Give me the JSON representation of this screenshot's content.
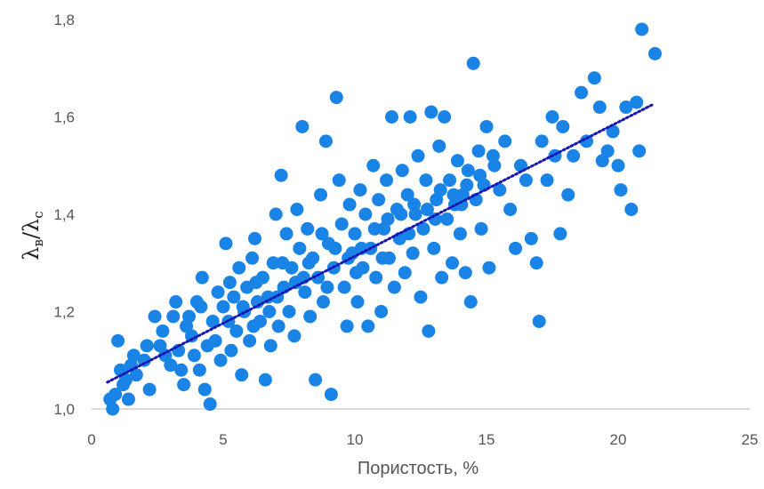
{
  "chart_data": {
    "type": "scatter",
    "title": "",
    "xlabel": "Пористость, %",
    "ylabel": {
      "main1": "λ",
      "sub1": "в",
      "slash": "/",
      "main2": "λ",
      "sub2": "c"
    },
    "xlim": [
      0,
      25
    ],
    "ylim": [
      1.0,
      1.8
    ],
    "xticks": [
      0,
      5,
      10,
      15,
      20,
      25
    ],
    "xtick_labels": [
      "0",
      "5",
      "10",
      "15",
      "20",
      "25"
    ],
    "yticks": [
      1.0,
      1.2,
      1.4,
      1.6,
      1.8
    ],
    "ytick_labels": [
      "1,0",
      "1,2",
      "1,4",
      "1,6",
      "1,8"
    ],
    "grid": false,
    "legend": "none",
    "point_color": "#1a84e6",
    "trendline": {
      "style": "dotted",
      "color": "#1616b4",
      "x": [
        0.6,
        21.3
      ],
      "y": [
        1.055,
        1.625
      ]
    },
    "points": [
      [
        0.7,
        1.02
      ],
      [
        0.8,
        1.0
      ],
      [
        0.9,
        1.03
      ],
      [
        1.0,
        1.14
      ],
      [
        1.1,
        1.08
      ],
      [
        1.2,
        1.05
      ],
      [
        1.3,
        1.06
      ],
      [
        1.4,
        1.02
      ],
      [
        1.6,
        1.11
      ],
      [
        1.7,
        1.07
      ],
      [
        2.0,
        1.1
      ],
      [
        2.2,
        1.04
      ],
      [
        2.4,
        1.19
      ],
      [
        2.6,
        1.13
      ],
      [
        2.8,
        1.11
      ],
      [
        3.0,
        1.09
      ],
      [
        3.1,
        1.19
      ],
      [
        3.2,
        1.22
      ],
      [
        3.3,
        1.12
      ],
      [
        3.4,
        1.08
      ],
      [
        3.5,
        1.05
      ],
      [
        3.6,
        1.17
      ],
      [
        3.8,
        1.15
      ],
      [
        3.9,
        1.11
      ],
      [
        4.0,
        1.22
      ],
      [
        4.1,
        1.08
      ],
      [
        4.2,
        1.27
      ],
      [
        4.3,
        1.04
      ],
      [
        4.5,
        1.01
      ],
      [
        4.4,
        1.13
      ],
      [
        4.6,
        1.18
      ],
      [
        4.7,
        1.14
      ],
      [
        4.8,
        1.24
      ],
      [
        4.9,
        1.1
      ],
      [
        5.0,
        1.21
      ],
      [
        5.1,
        1.34
      ],
      [
        5.2,
        1.18
      ],
      [
        5.3,
        1.12
      ],
      [
        5.4,
        1.23
      ],
      [
        5.5,
        1.16
      ],
      [
        5.6,
        1.29
      ],
      [
        5.7,
        1.07
      ],
      [
        5.8,
        1.2
      ],
      [
        5.9,
        1.25
      ],
      [
        6.0,
        1.14
      ],
      [
        6.1,
        1.31
      ],
      [
        6.2,
        1.35
      ],
      [
        6.3,
        1.22
      ],
      [
        6.4,
        1.18
      ],
      [
        6.5,
        1.27
      ],
      [
        6.6,
        1.06
      ],
      [
        6.7,
        1.23
      ],
      [
        6.8,
        1.13
      ],
      [
        6.9,
        1.3
      ],
      [
        7.0,
        1.4
      ],
      [
        7.1,
        1.17
      ],
      [
        7.2,
        1.48
      ],
      [
        7.3,
        1.25
      ],
      [
        7.4,
        1.36
      ],
      [
        7.5,
        1.2
      ],
      [
        7.6,
        1.29
      ],
      [
        7.7,
        1.15
      ],
      [
        7.8,
        1.41
      ],
      [
        7.9,
        1.33
      ],
      [
        8.0,
        1.58
      ],
      [
        8.1,
        1.24
      ],
      [
        8.2,
        1.37
      ],
      [
        8.3,
        1.19
      ],
      [
        8.4,
        1.31
      ],
      [
        8.5,
        1.06
      ],
      [
        8.6,
        1.27
      ],
      [
        8.7,
        1.44
      ],
      [
        8.8,
        1.22
      ],
      [
        8.9,
        1.55
      ],
      [
        9.0,
        1.34
      ],
      [
        9.1,
        1.03
      ],
      [
        9.2,
        1.29
      ],
      [
        9.3,
        1.64
      ],
      [
        9.4,
        1.47
      ],
      [
        9.5,
        1.38
      ],
      [
        9.6,
        1.25
      ],
      [
        9.7,
        1.17
      ],
      [
        9.8,
        1.42
      ],
      [
        9.9,
        1.32
      ],
      [
        10.0,
        1.36
      ],
      [
        10.1,
        1.22
      ],
      [
        10.2,
        1.45
      ],
      [
        10.3,
        1.29
      ],
      [
        10.4,
        1.4
      ],
      [
        10.5,
        1.17
      ],
      [
        10.6,
        1.33
      ],
      [
        10.7,
        1.5
      ],
      [
        10.8,
        1.27
      ],
      [
        10.9,
        1.43
      ],
      [
        11.0,
        1.2
      ],
      [
        11.1,
        1.37
      ],
      [
        11.2,
        1.47
      ],
      [
        11.3,
        1.31
      ],
      [
        11.4,
        1.6
      ],
      [
        11.5,
        1.25
      ],
      [
        11.6,
        1.41
      ],
      [
        11.7,
        1.35
      ],
      [
        11.8,
        1.49
      ],
      [
        11.9,
        1.28
      ],
      [
        12.0,
        1.44
      ],
      [
        12.1,
        1.6
      ],
      [
        12.2,
        1.32
      ],
      [
        12.3,
        1.4
      ],
      [
        12.4,
        1.52
      ],
      [
        12.5,
        1.23
      ],
      [
        12.6,
        1.37
      ],
      [
        12.7,
        1.47
      ],
      [
        12.8,
        1.16
      ],
      [
        12.9,
        1.61
      ],
      [
        13.0,
        1.33
      ],
      [
        13.1,
        1.43
      ],
      [
        13.2,
        1.54
      ],
      [
        13.3,
        1.27
      ],
      [
        13.4,
        1.6
      ],
      [
        13.5,
        1.39
      ],
      [
        13.6,
        1.47
      ],
      [
        13.7,
        1.3
      ],
      [
        13.8,
        1.42
      ],
      [
        13.9,
        1.51
      ],
      [
        14.0,
        1.36
      ],
      [
        14.1,
        1.44
      ],
      [
        14.2,
        1.28
      ],
      [
        14.3,
        1.49
      ],
      [
        14.4,
        1.22
      ],
      [
        14.5,
        1.71
      ],
      [
        14.6,
        1.43
      ],
      [
        14.7,
        1.53
      ],
      [
        14.8,
        1.37
      ],
      [
        14.9,
        1.46
      ],
      [
        15.0,
        1.58
      ],
      [
        15.1,
        1.29
      ],
      [
        15.3,
        1.5
      ],
      [
        15.5,
        1.45
      ],
      [
        15.7,
        1.55
      ],
      [
        15.9,
        1.41
      ],
      [
        16.1,
        1.33
      ],
      [
        16.3,
        1.5
      ],
      [
        16.5,
        1.47
      ],
      [
        16.7,
        1.35
      ],
      [
        16.9,
        1.3
      ],
      [
        17.0,
        1.18
      ],
      [
        17.1,
        1.55
      ],
      [
        17.3,
        1.47
      ],
      [
        17.5,
        1.6
      ],
      [
        17.6,
        1.52
      ],
      [
        17.8,
        1.36
      ],
      [
        17.9,
        1.58
      ],
      [
        18.1,
        1.44
      ],
      [
        18.3,
        1.52
      ],
      [
        18.6,
        1.65
      ],
      [
        18.8,
        1.55
      ],
      [
        19.1,
        1.68
      ],
      [
        19.3,
        1.62
      ],
      [
        19.4,
        1.51
      ],
      [
        19.6,
        1.53
      ],
      [
        19.8,
        1.57
      ],
      [
        20.0,
        1.5
      ],
      [
        20.1,
        1.45
      ],
      [
        20.3,
        1.62
      ],
      [
        20.5,
        1.41
      ],
      [
        20.7,
        1.63
      ],
      [
        20.8,
        1.53
      ],
      [
        20.9,
        1.78
      ],
      [
        21.4,
        1.73
      ],
      [
        1.5,
        1.09
      ],
      [
        2.1,
        1.13
      ],
      [
        2.7,
        1.16
      ],
      [
        3.7,
        1.19
      ],
      [
        4.15,
        1.21
      ],
      [
        5.25,
        1.26
      ],
      [
        5.75,
        1.21
      ],
      [
        6.25,
        1.26
      ],
      [
        6.75,
        1.2
      ],
      [
        7.25,
        1.3
      ],
      [
        7.75,
        1.26
      ],
      [
        8.25,
        1.3
      ],
      [
        8.75,
        1.36
      ],
      [
        9.25,
        1.33
      ],
      [
        9.75,
        1.31
      ],
      [
        10.25,
        1.33
      ],
      [
        10.75,
        1.37
      ],
      [
        11.25,
        1.39
      ],
      [
        11.75,
        1.4
      ],
      [
        12.25,
        1.42
      ],
      [
        12.75,
        1.41
      ],
      [
        13.25,
        1.45
      ],
      [
        13.75,
        1.44
      ],
      [
        14.25,
        1.46
      ],
      [
        14.75,
        1.48
      ],
      [
        15.25,
        1.52
      ],
      [
        6.15,
        1.17
      ],
      [
        7.05,
        1.23
      ],
      [
        8.05,
        1.27
      ],
      [
        8.95,
        1.25
      ],
      [
        10.05,
        1.28
      ],
      [
        11.05,
        1.31
      ],
      [
        12.05,
        1.36
      ],
      [
        13.05,
        1.39
      ],
      [
        14.05,
        1.42
      ]
    ]
  }
}
